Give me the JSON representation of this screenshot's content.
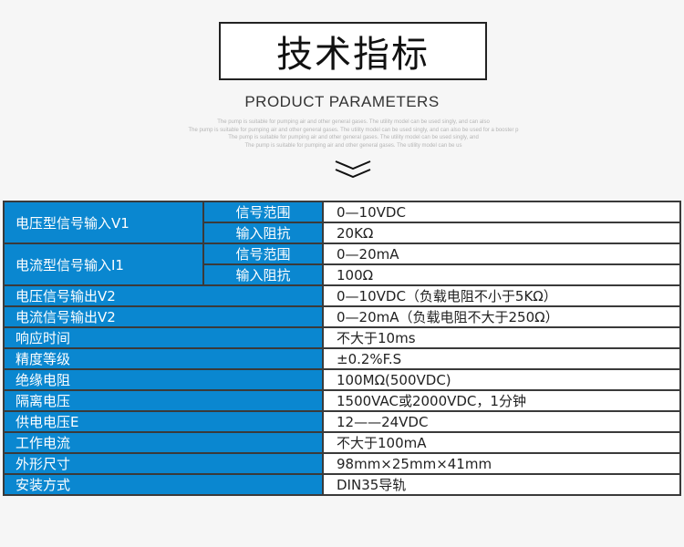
{
  "header": {
    "title": "技术指标",
    "subtitle": "PRODUCT PARAMETERS",
    "description_lines": [
      "The pump is suitable for pumping air and other general gases. The utility model can be used singly, and can also",
      "The pump is suitable for pumping air and other general gases. The utility model can be used singly, and can also be used for a booster p",
      "The pump is suitable for pumping air and other general gases. The utility model can be used singly, and",
      "The pump is suitable for pumping air and other general gases. The utility model can be us"
    ],
    "icon": "double-chevron-down-icon"
  },
  "colors": {
    "header_cell": "#0a87d0",
    "border": "#3a3a3a"
  },
  "table": {
    "grouped": [
      {
        "label": "电压型信号输入V1",
        "subs": [
          {
            "label": "信号范围",
            "value": "0—10VDC"
          },
          {
            "label": "输入阻抗",
            "value": "20KΩ"
          }
        ]
      },
      {
        "label": "电流型信号输入I1",
        "subs": [
          {
            "label": "信号范围",
            "value": "0—20mA"
          },
          {
            "label": "输入阻抗",
            "value": "100Ω"
          }
        ]
      }
    ],
    "rows": [
      {
        "label": "电压信号输出V2",
        "value": "0—10VDC（负载电阻不小于5KΩ）"
      },
      {
        "label": "电流信号输出V2",
        "value": "0—20mA（负载电阻不大于250Ω）"
      },
      {
        "label": "响应时间",
        "value": "不大于10ms"
      },
      {
        "label": "精度等级",
        "value": "±0.2%F.S"
      },
      {
        "label": "绝缘电阻",
        "value": "100MΩ(500VDC)"
      },
      {
        "label": "隔离电压",
        "value": "1500VAC或2000VDC，1分钟"
      },
      {
        "label": "供电电压E",
        "value": "12——24VDC"
      },
      {
        "label": "工作电流",
        "value": "不大于100mA"
      },
      {
        "label": "外形尺寸",
        "value": "98mm×25mm×41mm"
      },
      {
        "label": "安装方式",
        "value": "DIN35导轨"
      }
    ]
  }
}
